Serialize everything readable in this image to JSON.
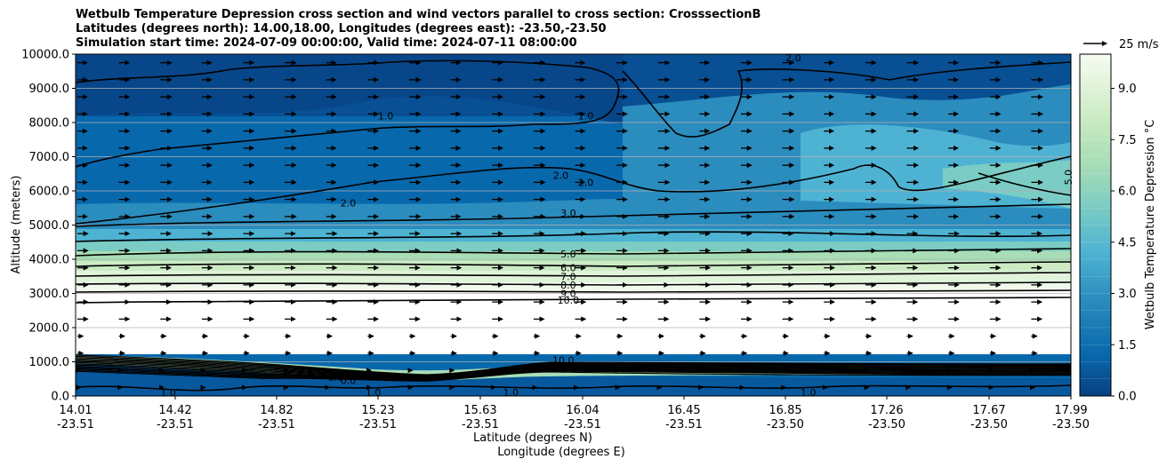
{
  "titles": [
    "Wetbulb Temperature Depression cross section and wind vectors parallel to cross section: CrosssectionB",
    "Latitudes (degrees north): 14.00,18.00, Longitudes (degrees east): -23.50,-23.50",
    "Simulation start time: 2024-07-09 00:00:00, Valid time: 2024-07-11 08:00:00"
  ],
  "chart_data": {
    "type": "heatmap",
    "title": "Wetbulb Temperature Depression cross section and wind vectors parallel to cross section: CrosssectionB",
    "ylabel": "Altitude (meters)",
    "xlabel_lat": "Latitude (degrees N)",
    "xlabel_lon": "Longitude (degrees E)",
    "ylim": [
      0,
      10000
    ],
    "y_ticks": [
      "0.0",
      "1000.0",
      "2000.0",
      "3000.0",
      "4000.0",
      "5000.0",
      "6000.0",
      "7000.0",
      "8000.0",
      "9000.0",
      "10000.0"
    ],
    "x_ticks": [
      {
        "lat": "14.01",
        "lon": "-23.51"
      },
      {
        "lat": "14.42",
        "lon": "-23.51"
      },
      {
        "lat": "14.82",
        "lon": "-23.51"
      },
      {
        "lat": "15.23",
        "lon": "-23.51"
      },
      {
        "lat": "15.63",
        "lon": "-23.51"
      },
      {
        "lat": "16.04",
        "lon": "-23.51"
      },
      {
        "lat": "16.45",
        "lon": "-23.51"
      },
      {
        "lat": "16.85",
        "lon": "-23.50"
      },
      {
        "lat": "17.26",
        "lon": "-23.50"
      },
      {
        "lat": "17.67",
        "lon": "-23.50"
      },
      {
        "lat": "17.99",
        "lon": "-23.50"
      }
    ],
    "grid": "horizontal",
    "colorbar": {
      "label": "Wetbulb Temperature Depression °C",
      "ticks": [
        "0.0",
        "1.5",
        "3.0",
        "4.5",
        "6.0",
        "7.5",
        "9.0"
      ],
      "range": [
        0,
        10
      ],
      "colormap": "GnBu_r"
    },
    "vector_key": {
      "label": "25 m/s",
      "value": 25
    },
    "contours": [
      {
        "level": "1.0",
        "altitude_m": 8300
      },
      {
        "level": "2.0",
        "altitude_m": 5900
      },
      {
        "level": "3.0",
        "altitude_m": 5000
      },
      {
        "level": "5.0",
        "altitude_m": 4050
      },
      {
        "level": "6.0",
        "altitude_m": 3650
      },
      {
        "level": "7.0",
        "altitude_m": 3400
      },
      {
        "level": "8.0",
        "altitude_m": 3150
      },
      {
        "level": "9.0",
        "altitude_m": 2950
      },
      {
        "level": "10.0",
        "altitude_m": 2750
      }
    ],
    "inline_contour_labels": [
      {
        "text": "1.0",
        "lat": 15.25,
        "alt": 8200
      },
      {
        "text": "1.0",
        "lat": 16.05,
        "alt": 8200
      },
      {
        "text": "2.0",
        "lat": 15.1,
        "alt": 5650
      },
      {
        "text": "2.0",
        "lat": 15.95,
        "alt": 6450
      },
      {
        "text": "2.0",
        "lat": 16.05,
        "alt": 6250
      },
      {
        "text": "3.0",
        "lat": 15.98,
        "alt": 5350
      },
      {
        "text": "5.0",
        "lat": 15.98,
        "alt": 4150
      },
      {
        "text": "6.0",
        "lat": 15.98,
        "alt": 3750
      },
      {
        "text": "7.0",
        "lat": 15.98,
        "alt": 3500
      },
      {
        "text": "8.0",
        "lat": 15.98,
        "alt": 3250
      },
      {
        "text": "9.0",
        "lat": 15.98,
        "alt": 3000
      },
      {
        "text": "10.0",
        "lat": 15.98,
        "alt": 2800
      },
      {
        "text": "5.0",
        "lat": 17.98,
        "alt": 6400
      },
      {
        "text": "2.0",
        "lat": 16.88,
        "alt": 9900
      },
      {
        "text": "10.0",
        "lat": 15.96,
        "alt": 1050
      },
      {
        "text": "1.0",
        "lat": 14.38,
        "alt": 100
      },
      {
        "text": "1.0",
        "lat": 15.2,
        "alt": 100
      },
      {
        "text": "1.0",
        "lat": 15.75,
        "alt": 100
      },
      {
        "text": "1.0",
        "lat": 16.94,
        "alt": 100
      },
      {
        "text": "0.0",
        "lat": 15.05,
        "alt": 550
      },
      {
        "text": "0.0",
        "lat": 15.1,
        "alt": 450
      }
    ],
    "vector_grid": {
      "lat_start": 14.01,
      "lat_end": 17.99,
      "columns": 25,
      "alt_start": 250,
      "alt_end": 9750,
      "rows": 20,
      "note_values": "wind parallel to section, roughly 12-20 m/s northward above 2 km, weaker near surface"
    }
  }
}
